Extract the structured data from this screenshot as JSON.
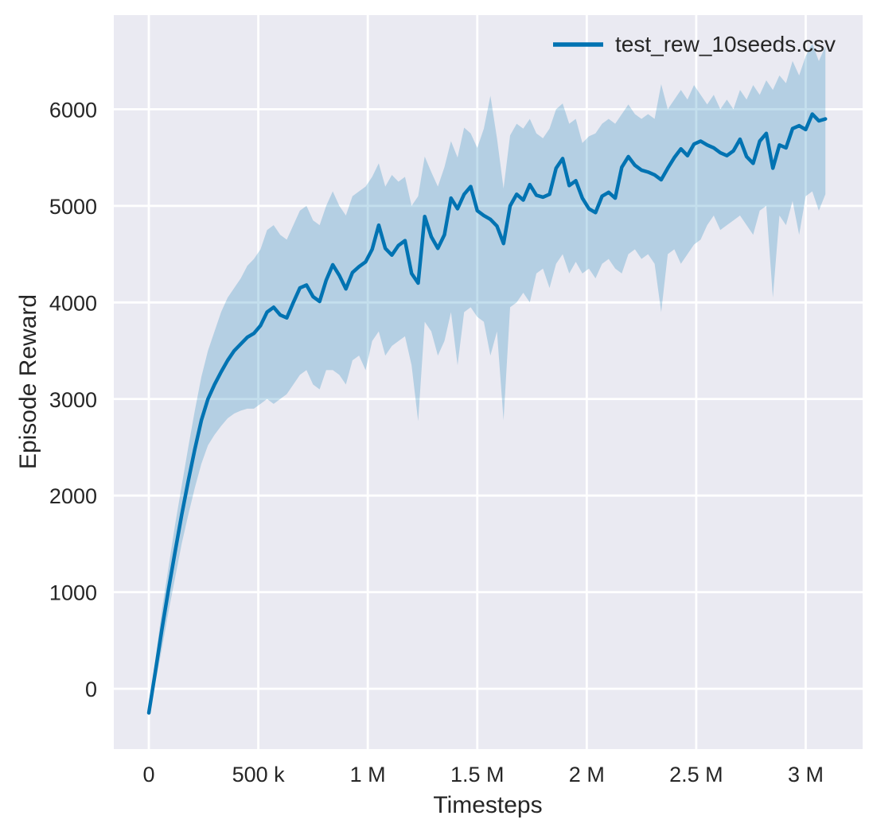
{
  "legend": {
    "label": "test_rew_10seeds.csv",
    "position": "upper right"
  },
  "axes": {
    "background": "#eaeaf2",
    "grid_color": "#ffffff",
    "text_color": "#262626",
    "outer_background": "#ffffff"
  },
  "chart_data": {
    "type": "line",
    "title": "",
    "xlabel": "Timesteps",
    "ylabel": "Episode Reward",
    "x_unit": "timesteps",
    "grid": true,
    "legend_position": "upper right",
    "xlim": [
      -160000,
      3260000
    ],
    "ylim": [
      -625,
      6975
    ],
    "xticks": {
      "values": [
        0,
        500000,
        1000000,
        1500000,
        2000000,
        2500000,
        3000000
      ],
      "labels": [
        "0",
        "500 k",
        "1 M",
        "1.5 M",
        "2 M",
        "2.5 M",
        "3 M"
      ]
    },
    "yticks": {
      "values": [
        0,
        1000,
        2000,
        3000,
        4000,
        5000,
        6000
      ],
      "labels": [
        "0",
        "1000",
        "2000",
        "3000",
        "4000",
        "5000",
        "6000"
      ]
    },
    "series": [
      {
        "name": "test_rew_10seeds.csv",
        "color": "#0173b2",
        "band_opacity": 0.23,
        "line_width": 4.5,
        "x": [
          0,
          30000,
          60000,
          90000,
          120000,
          150000,
          180000,
          210000,
          240000,
          270000,
          300000,
          330000,
          360000,
          390000,
          420000,
          450000,
          480000,
          510000,
          540000,
          570000,
          600000,
          630000,
          660000,
          690000,
          720000,
          750000,
          780000,
          810000,
          840000,
          870000,
          900000,
          930000,
          960000,
          990000,
          1020000,
          1050000,
          1080000,
          1110000,
          1140000,
          1170000,
          1200000,
          1230000,
          1260000,
          1290000,
          1320000,
          1350000,
          1380000,
          1410000,
          1440000,
          1470000,
          1500000,
          1530000,
          1560000,
          1590000,
          1620000,
          1650000,
          1680000,
          1710000,
          1740000,
          1770000,
          1800000,
          1830000,
          1860000,
          1890000,
          1920000,
          1950000,
          1980000,
          2010000,
          2040000,
          2070000,
          2100000,
          2130000,
          2160000,
          2190000,
          2220000,
          2250000,
          2280000,
          2310000,
          2340000,
          2370000,
          2400000,
          2430000,
          2460000,
          2490000,
          2520000,
          2550000,
          2580000,
          2610000,
          2640000,
          2670000,
          2700000,
          2730000,
          2760000,
          2790000,
          2820000,
          2850000,
          2880000,
          2910000,
          2940000,
          2970000,
          3000000,
          3030000,
          3060000,
          3090000
        ],
        "mean": [
          -250,
          180,
          620,
          1030,
          1420,
          1800,
          2150,
          2480,
          2780,
          3000,
          3150,
          3280,
          3400,
          3500,
          3570,
          3640,
          3680,
          3760,
          3900,
          3950,
          3870,
          3840,
          4000,
          4150,
          4180,
          4060,
          4010,
          4230,
          4390,
          4280,
          4140,
          4310,
          4370,
          4420,
          4550,
          4800,
          4560,
          4490,
          4590,
          4640,
          4300,
          4200,
          4890,
          4680,
          4560,
          4700,
          5080,
          4970,
          5120,
          5200,
          4950,
          4900,
          4860,
          4790,
          4610,
          5000,
          5120,
          5060,
          5220,
          5110,
          5090,
          5120,
          5390,
          5490,
          5210,
          5260,
          5080,
          4970,
          4930,
          5100,
          5140,
          5080,
          5400,
          5510,
          5420,
          5370,
          5350,
          5320,
          5270,
          5390,
          5500,
          5590,
          5520,
          5640,
          5670,
          5630,
          5600,
          5550,
          5520,
          5570,
          5690,
          5510,
          5440,
          5670,
          5750,
          5390,
          5630,
          5600,
          5800,
          5830,
          5790,
          5950,
          5880,
          5900
        ],
        "band_lower": [
          -280,
          60,
          420,
          800,
          1150,
          1500,
          1800,
          2080,
          2330,
          2520,
          2630,
          2720,
          2800,
          2850,
          2880,
          2900,
          2900,
          2950,
          3000,
          2950,
          3000,
          3050,
          3150,
          3250,
          3300,
          3150,
          3100,
          3300,
          3300,
          3250,
          3150,
          3400,
          3450,
          3300,
          3600,
          3700,
          3450,
          3550,
          3600,
          3650,
          3350,
          2770,
          3800,
          3700,
          3450,
          3600,
          3900,
          3350,
          3900,
          3950,
          3850,
          3800,
          3450,
          3700,
          2780,
          3950,
          4000,
          4100,
          4000,
          4300,
          4350,
          4150,
          4400,
          4500,
          4300,
          4420,
          4300,
          4350,
          4250,
          4400,
          4450,
          4350,
          4300,
          4500,
          4550,
          4450,
          4500,
          4400,
          3900,
          4500,
          4550,
          4400,
          4500,
          4600,
          4650,
          4800,
          4900,
          4750,
          4800,
          4850,
          4900,
          4800,
          4700,
          4950,
          5000,
          4050,
          4900,
          4800,
          5050,
          4700,
          5100,
          5150,
          4950,
          5120
        ],
        "band_upper": [
          -220,
          300,
          820,
          1260,
          1700,
          2100,
          2500,
          2880,
          3230,
          3500,
          3700,
          3900,
          4050,
          4150,
          4250,
          4380,
          4450,
          4550,
          4750,
          4800,
          4700,
          4650,
          4800,
          4950,
          5000,
          4850,
          4800,
          5000,
          5150,
          5000,
          4900,
          5100,
          5150,
          5200,
          5300,
          5440,
          5200,
          5320,
          5250,
          5300,
          5000,
          5100,
          5510,
          5350,
          5200,
          5400,
          5670,
          5500,
          5810,
          5750,
          5600,
          5800,
          6140,
          5700,
          5180,
          5730,
          5850,
          5800,
          5900,
          5750,
          5700,
          5800,
          6000,
          6060,
          5850,
          5900,
          5650,
          5720,
          5750,
          5850,
          5900,
          5850,
          5950,
          6050,
          5950,
          5900,
          5950,
          5900,
          6260,
          6000,
          6100,
          6200,
          6100,
          6250,
          6150,
          6050,
          6150,
          6000,
          6100,
          6000,
          6200,
          6100,
          6250,
          6150,
          6300,
          6200,
          6350,
          6270,
          6500,
          6350,
          6550,
          6680,
          6500,
          6650
        ]
      }
    ]
  }
}
